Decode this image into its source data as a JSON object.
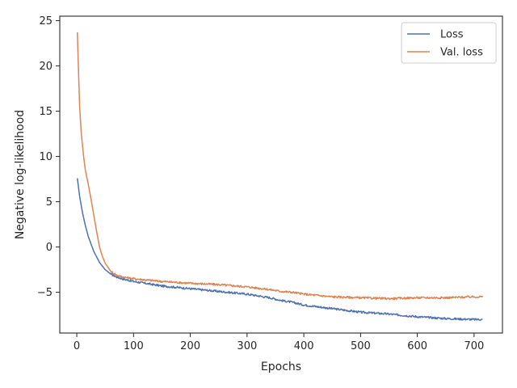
{
  "chart_data": {
    "type": "line",
    "xlabel": "Epochs",
    "ylabel": "Negative log-likelihood",
    "xlim": [
      -30,
      750
    ],
    "ylim": [
      -9.5,
      25.5
    ],
    "xticks": [
      0,
      100,
      200,
      300,
      400,
      500,
      600,
      700
    ],
    "yticks": [
      -5,
      0,
      5,
      10,
      15,
      20,
      25
    ],
    "grid": false,
    "legend_position": "top-right",
    "series": [
      {
        "name": "Loss",
        "color": "#4c72b0",
        "x": [
          1,
          5,
          10,
          15,
          20,
          30,
          40,
          50,
          60,
          70,
          80,
          100,
          120,
          150,
          200,
          250,
          300,
          340,
          360,
          380,
          400,
          450,
          500,
          550,
          600,
          650,
          700,
          715
        ],
        "y": [
          7.6,
          5.6,
          3.8,
          2.4,
          1.2,
          -0.5,
          -1.7,
          -2.5,
          -3.0,
          -3.3,
          -3.5,
          -3.8,
          -4.0,
          -4.3,
          -4.6,
          -4.9,
          -5.2,
          -5.6,
          -5.9,
          -6.1,
          -6.4,
          -6.8,
          -7.2,
          -7.4,
          -7.7,
          -7.9,
          -8.0,
          -8.0
        ]
      },
      {
        "name": "Val. loss",
        "color": "#dd8452",
        "x": [
          1,
          3,
          5,
          8,
          12,
          15,
          20,
          25,
          30,
          35,
          40,
          45,
          50,
          60,
          70,
          80,
          100,
          150,
          200,
          250,
          300,
          340,
          360,
          380,
          400,
          450,
          500,
          550,
          600,
          650,
          700,
          715
        ],
        "y": [
          23.7,
          19.5,
          15.5,
          12.5,
          10.0,
          8.5,
          7.0,
          5.3,
          3.5,
          1.7,
          0.0,
          -1.0,
          -1.8,
          -2.7,
          -3.1,
          -3.3,
          -3.5,
          -3.8,
          -4.0,
          -4.15,
          -4.4,
          -4.7,
          -4.9,
          -5.0,
          -5.2,
          -5.5,
          -5.6,
          -5.7,
          -5.6,
          -5.6,
          -5.5,
          -5.5
        ]
      }
    ]
  }
}
